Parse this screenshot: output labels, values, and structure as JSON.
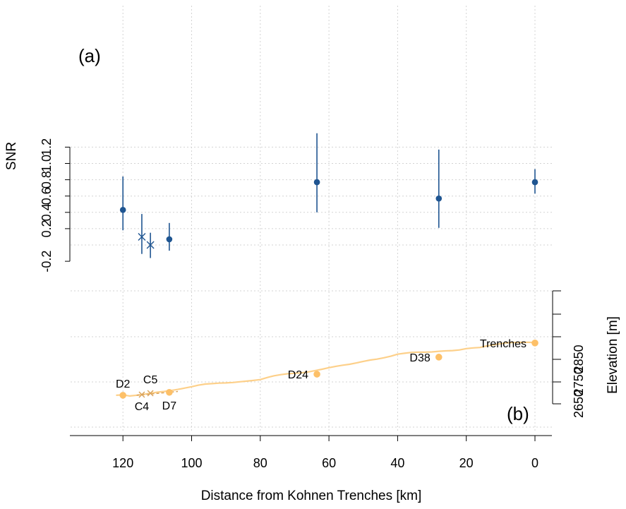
{
  "chart_data": [
    {
      "panel": "(a)",
      "type": "scatter",
      "ylabel": "SNR",
      "xlabel": "Distance from Kohnen Trenches [km]",
      "xlim": [
        0,
        120
      ],
      "ylim": [
        -0.2,
        1.2
      ],
      "yticks": [
        -0.2,
        0.2,
        0.4,
        0.6,
        0.8,
        1.0,
        1.2
      ],
      "xticks": [
        120,
        100,
        80,
        60,
        40,
        20,
        0
      ],
      "grid": true,
      "series": [
        {
          "marker": "dot",
          "x": [
            120,
            106.5,
            63.5,
            28,
            0
          ],
          "y": [
            0.43,
            0.07,
            0.77,
            0.57,
            0.77
          ],
          "lower": [
            0.18,
            -0.07,
            0.4,
            0.21,
            0.63
          ],
          "upper": [
            0.84,
            0.27,
            1.37,
            1.17,
            0.93
          ]
        },
        {
          "marker": "cross",
          "x": [
            114.5,
            112
          ],
          "y": [
            0.1,
            0.0
          ],
          "lower": [
            -0.11,
            -0.16
          ],
          "upper": [
            0.38,
            0.15
          ]
        }
      ],
      "color": "#1f5591"
    },
    {
      "panel": "(b)",
      "type": "line",
      "ylabel": "Elevation [m]",
      "yticks": [
        2650,
        2750,
        2850
      ],
      "line_color": "#fdd08a",
      "marker_color": "#fdc068",
      "cross_color": "#d9a25a",
      "profile": {
        "x": [
          122,
          120,
          118,
          116,
          114,
          112,
          110,
          108,
          106,
          104,
          102,
          100,
          98,
          96,
          94,
          92,
          90,
          88,
          86,
          84,
          82,
          80,
          78,
          76,
          74,
          72,
          70,
          68,
          66,
          64,
          62,
          60,
          58,
          56,
          54,
          52,
          50,
          48,
          46,
          44,
          42,
          40,
          38,
          36,
          34,
          32,
          30,
          28,
          26,
          24,
          22,
          20,
          18,
          16,
          14,
          12,
          10,
          8,
          6,
          4,
          2,
          0
        ],
        "y": [
          2688,
          2690,
          2685,
          2688,
          2692,
          2697,
          2702,
          2705,
          2709,
          2714,
          2720,
          2726,
          2733,
          2738,
          2740,
          2742,
          2743,
          2745,
          2748,
          2751,
          2754,
          2758,
          2767,
          2775,
          2780,
          2784,
          2786,
          2788,
          2792,
          2798,
          2804,
          2811,
          2817,
          2822,
          2826,
          2832,
          2839,
          2845,
          2849,
          2855,
          2862,
          2871,
          2875,
          2879,
          2880,
          2880,
          2881,
          2884,
          2886,
          2887,
          2890,
          2896,
          2899,
          2901,
          2908,
          2913,
          2918,
          2922,
          2923,
          2924,
          2924,
          2923
        ]
      },
      "stations": [
        {
          "label": "D2",
          "x": 120,
          "y": 2688,
          "marker": "dot"
        },
        {
          "label": "C4",
          "x": 114.5,
          "y": 2691,
          "marker": "cross"
        },
        {
          "label": "C5",
          "x": 112,
          "y": 2697,
          "marker": "cross"
        },
        {
          "label": "D7",
          "x": 106.5,
          "y": 2701,
          "marker": "dot"
        },
        {
          "label": "D24",
          "x": 63.5,
          "y": 2782,
          "marker": "dot"
        },
        {
          "label": "D38",
          "x": 28,
          "y": 2858,
          "marker": "dot"
        },
        {
          "label": "Trenches",
          "x": 0,
          "y": 2921,
          "marker": "dot"
        }
      ]
    }
  ]
}
